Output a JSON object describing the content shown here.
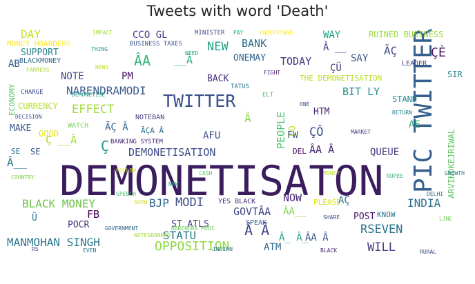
{
  "title": "Tweets with word 'Death'",
  "words": [
    {
      "text": "DEMONETISATON",
      "color": "#3b1d5e"
    },
    {
      "text": "PIC TWITTER",
      "color": "#35608d"
    },
    {
      "text": "TWITTER",
      "color": "#3a4f8a"
    },
    {
      "text": "NARENDRAMODI",
      "color": "#3c5c8d"
    },
    {
      "text": "BLACK MONEY",
      "color": "#6cc24a"
    },
    {
      "text": "MANMOHAN SINGH",
      "color": "#2a788e"
    },
    {
      "text": "OPPOSITION",
      "color": "#8fd744"
    },
    {
      "text": "DEMONETISATION",
      "color": "#3e4989"
    },
    {
      "text": "STATU",
      "color": "#287d8e"
    },
    {
      "text": "BJP",
      "color": "#31688e"
    },
    {
      "text": "MODI",
      "color": "#3e4a89"
    },
    {
      "text": "INDIA",
      "color": "#2d708e"
    },
    {
      "text": "RSEVEN",
      "color": "#2c728e"
    },
    {
      "text": "WILL",
      "color": "#4a3a7d"
    },
    {
      "text": "NOW",
      "color": "#482878"
    },
    {
      "text": "FB",
      "color": "#440154"
    },
    {
      "text": "POCR",
      "color": "#46327e"
    },
    {
      "text": "EFFECT",
      "color": "#a0da39"
    },
    {
      "text": "BIT LY",
      "color": "#21918c"
    },
    {
      "text": "TODAY",
      "color": "#453781"
    },
    {
      "text": "NEW",
      "color": "#20a386"
    },
    {
      "text": "BANK",
      "color": "#2e6e8e"
    },
    {
      "text": "ONEMAY",
      "color": "#33638d"
    },
    {
      "text": "BACK",
      "color": "#472d7b"
    },
    {
      "text": "SAY",
      "color": "#3b528b"
    },
    {
      "text": "NOTE",
      "color": "#404688"
    },
    {
      "text": "PM",
      "color": "#471063"
    },
    {
      "text": "ARVINDKEJRIWAL",
      "color": "#5ec962"
    },
    {
      "text": "CURRENCY",
      "color": "#b5de2b"
    },
    {
      "text": "SUPPORT",
      "color": "#26828e"
    },
    {
      "text": "ATM",
      "color": "#30688e"
    },
    {
      "text": "GOVTÂA",
      "color": "#3f4788"
    },
    {
      "text": "QUEUE",
      "color": "#46337f"
    },
    {
      "text": "STAND",
      "color": "#24878e"
    },
    {
      "text": "SIR",
      "color": "#25848e"
    },
    {
      "text": "MAKE",
      "color": "#38598c"
    },
    {
      "text": "PEOPLE",
      "color": "#4ac16d"
    },
    {
      "text": "DAY",
      "color": "#c8e020"
    },
    {
      "text": "WAY",
      "color": "#1f9e89"
    },
    {
      "text": "POST",
      "color": "#471365"
    },
    {
      "text": "RUINED BUSINESS",
      "color": "#9bd93c"
    },
    {
      "text": "MONEY HOARDERS",
      "color": "#fde725"
    },
    {
      "text": "BLACKMONEY",
      "color": "#2f6b8e"
    },
    {
      "text": "CCO GL",
      "color": "#424086"
    },
    {
      "text": "AFU",
      "color": "#3d4e8a"
    },
    {
      "text": "PLEASE",
      "color": "#d8e219"
    },
    {
      "text": "KNOW",
      "color": "#2d718e"
    },
    {
      "text": "ECONOMY",
      "color": "#54c568"
    },
    {
      "text": "LEADER",
      "color": "#443983"
    },
    {
      "text": "WATCH",
      "color": "#7ad151"
    },
    {
      "text": "GOOD",
      "color": "#e5e419"
    },
    {
      "text": "SPEAK",
      "color": "#355f8d"
    },
    {
      "text": "HTM",
      "color": "#481f70"
    },
    {
      "text": "CHARGE",
      "color": "#3d4d8a"
    },
    {
      "text": "TATUS",
      "color": "#2b758e"
    },
    {
      "text": "ST ATLS",
      "color": "#3f4889"
    },
    {
      "text": "BANKING SYSTEM",
      "color": "#482475"
    },
    {
      "text": "NOTEBAN",
      "color": "#4f3f80"
    },
    {
      "text": "BUSINESS TAXES",
      "color": "#3a548c"
    },
    {
      "text": "MINISTER",
      "color": "#3f4a8a"
    },
    {
      "text": "DEL",
      "color": "#46085c"
    },
    {
      "text": "SE",
      "color": "#3b518b"
    },
    {
      "text": "ÂA",
      "color": "#31b57b"
    },
    {
      "text": "Â__",
      "color": "#2a778e"
    },
    {
      "text": "Ç",
      "color": "#21918c"
    },
    {
      "text": "ÇÈ",
      "color": "#481668"
    },
    {
      "text": "ÃÇ",
      "color": "#3e4c8a"
    },
    {
      "text": "Â",
      "color": "#8bd646"
    },
    {
      "text": "__Â",
      "color": "#26ad81"
    },
    {
      "text": "ÇÔ",
      "color": "#3b528b"
    },
    {
      "text": "Â  Â",
      "color": "#3f4788"
    },
    {
      "text": "ÇÜ",
      "color": "#433e85"
    },
    {
      "text": "ÃÇ Â",
      "color": "#33638d"
    },
    {
      "text": "Â_ Â_",
      "color": "#1fa187"
    },
    {
      "text": "Â __",
      "color": "#463480"
    },
    {
      "text": "AÇ",
      "color": "#2b758e"
    },
    {
      "text": "ÂA__",
      "color": "#7fd34e"
    },
    {
      "text": "Ü",
      "color": "#287c8e"
    },
    {
      "text": "ÂA  Â",
      "color": "#3a538b"
    },
    {
      "text": "CO",
      "color": "#c2df23"
    },
    {
      "text": "AB",
      "color": "#39568c"
    },
    {
      "text": "THE DEMONETISATION",
      "color": "#b8de29"
    },
    {
      "text": "FW",
      "color": "#3c4f8a"
    },
    {
      "text": "ÂA Â",
      "color": "#482677"
    },
    {
      "text": "Ç __Â",
      "color": "#a2da37"
    },
    {
      "text": "ÃÇA Â",
      "color": "#306a8e"
    },
    {
      "text": "SE",
      "color": "#2e6e8e"
    },
    {
      "text": "AE",
      "color": "#2db27d"
    },
    {
      "text": "YES BLACK",
      "color": "#472e7c"
    },
    {
      "text": "ELT",
      "color": "#4cc26c"
    },
    {
      "text": "INDIAN",
      "color": "#2d718e"
    },
    {
      "text": "SHARE",
      "color": "#3b518b"
    },
    {
      "text": "NEW",
      "color": "#22a884"
    },
    {
      "text": "LINE",
      "color": "#6ece58"
    },
    {
      "text": "NEWS",
      "color": "#c2df23"
    },
    {
      "text": "DECISION",
      "color": "#3a538b"
    },
    {
      "text": "NARENDRA MODI",
      "color": "#6ece58"
    },
    {
      "text": "BLACK",
      "color": "#482878"
    },
    {
      "text": "RETURN",
      "color": "#25838e"
    },
    {
      "text": "COUNTRY",
      "color": "#7ad151"
    },
    {
      "text": "IMPACT",
      "color": "#9fda3a"
    },
    {
      "text": "UNDERSTAND",
      "color": "#fde725"
    },
    {
      "text": "SHOW",
      "color": "#dae319"
    },
    {
      "text": "SPEECH",
      "color": "#40bd72"
    },
    {
      "text": "FIGHT",
      "color": "#482173"
    },
    {
      "text": "THING",
      "color": "#1f998a"
    },
    {
      "text": "RS",
      "color": "#3c4f8a"
    },
    {
      "text": "DELHI",
      "color": "#2e6e8e"
    },
    {
      "text": "CASH",
      "color": "#5ac864"
    },
    {
      "text": "MONEY",
      "color": "#bddf26"
    },
    {
      "text": "GOVERNMENT",
      "color": "#31688e"
    },
    {
      "text": "NOTESBANNED",
      "color": "#a2da37"
    },
    {
      "text": "RURAL",
      "color": "#3e4a89"
    },
    {
      "text": "EVEN",
      "color": "#2a788e"
    },
    {
      "text": "DEMONETISE",
      "color": "#1fa088"
    },
    {
      "text": "MARKET",
      "color": "#463480"
    },
    {
      "text": "FARMERS",
      "color": "#b5de2b"
    },
    {
      "text": "GROWTH",
      "color": "#2c738e"
    },
    {
      "text": "ONE",
      "color": "#3b528b"
    },
    {
      "text": "NEED",
      "color": "#1fa187"
    },
    {
      "text": "PAY",
      "color": "#27ad81"
    },
    {
      "text": "FOLLOW",
      "color": "#dde318"
    },
    {
      "text": "RUPEE",
      "color": "#37b878"
    }
  ]
}
